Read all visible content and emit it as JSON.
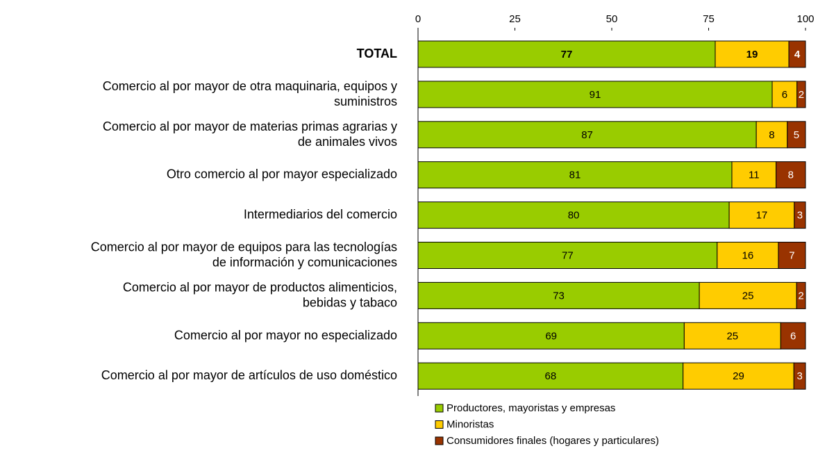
{
  "chart_data": {
    "type": "stacked_bar_horizontal",
    "categories": [
      "TOTAL",
      "Comercio al por mayor de otra maquinaria, equipos y\nsuministros",
      "Comercio al por mayor de materias primas agrarias y\nde animales vivos",
      "Otro comercio al por mayor especializado",
      "Intermediarios del comercio",
      "Comercio al por mayor de equipos para las tecnologías\nde información y comunicaciones",
      "Comercio al por mayor de productos alimenticios,\nbebidas y tabaco",
      "Comercio al por mayor no especializado",
      "Comercio al por mayor de artículos de uso doméstico"
    ],
    "series": [
      {
        "name": "Productores, mayoristas y empresas",
        "color": "#99cc00",
        "values": [
          76.7,
          91.4,
          87.3,
          81.0,
          80.3,
          77.2,
          72.6,
          68.7,
          68.4
        ],
        "value_labels": [
          "77",
          "91",
          "87",
          "81",
          "80",
          "77",
          "73",
          "69",
          "68"
        ]
      },
      {
        "name": "Minoristas",
        "color": "#ffcc00",
        "values": [
          19.0,
          6.4,
          8.0,
          11.4,
          16.8,
          15.8,
          25.1,
          24.9,
          28.6
        ],
        "value_labels": [
          "19",
          "6",
          "8",
          "11",
          "17",
          "16",
          "25",
          "25",
          "29"
        ]
      },
      {
        "name": "Consumidores finales (hogares y particulares)",
        "color": "#993300",
        "values": [
          4.3,
          2.2,
          4.7,
          7.6,
          2.9,
          7.0,
          2.3,
          6.4,
          3.0
        ],
        "value_labels": [
          "4",
          "2",
          "5",
          "8",
          "3",
          "7",
          "2",
          "6",
          "3"
        ]
      }
    ],
    "xlim": [
      0,
      100
    ],
    "xticks": [
      0,
      25,
      50,
      75,
      100
    ]
  }
}
